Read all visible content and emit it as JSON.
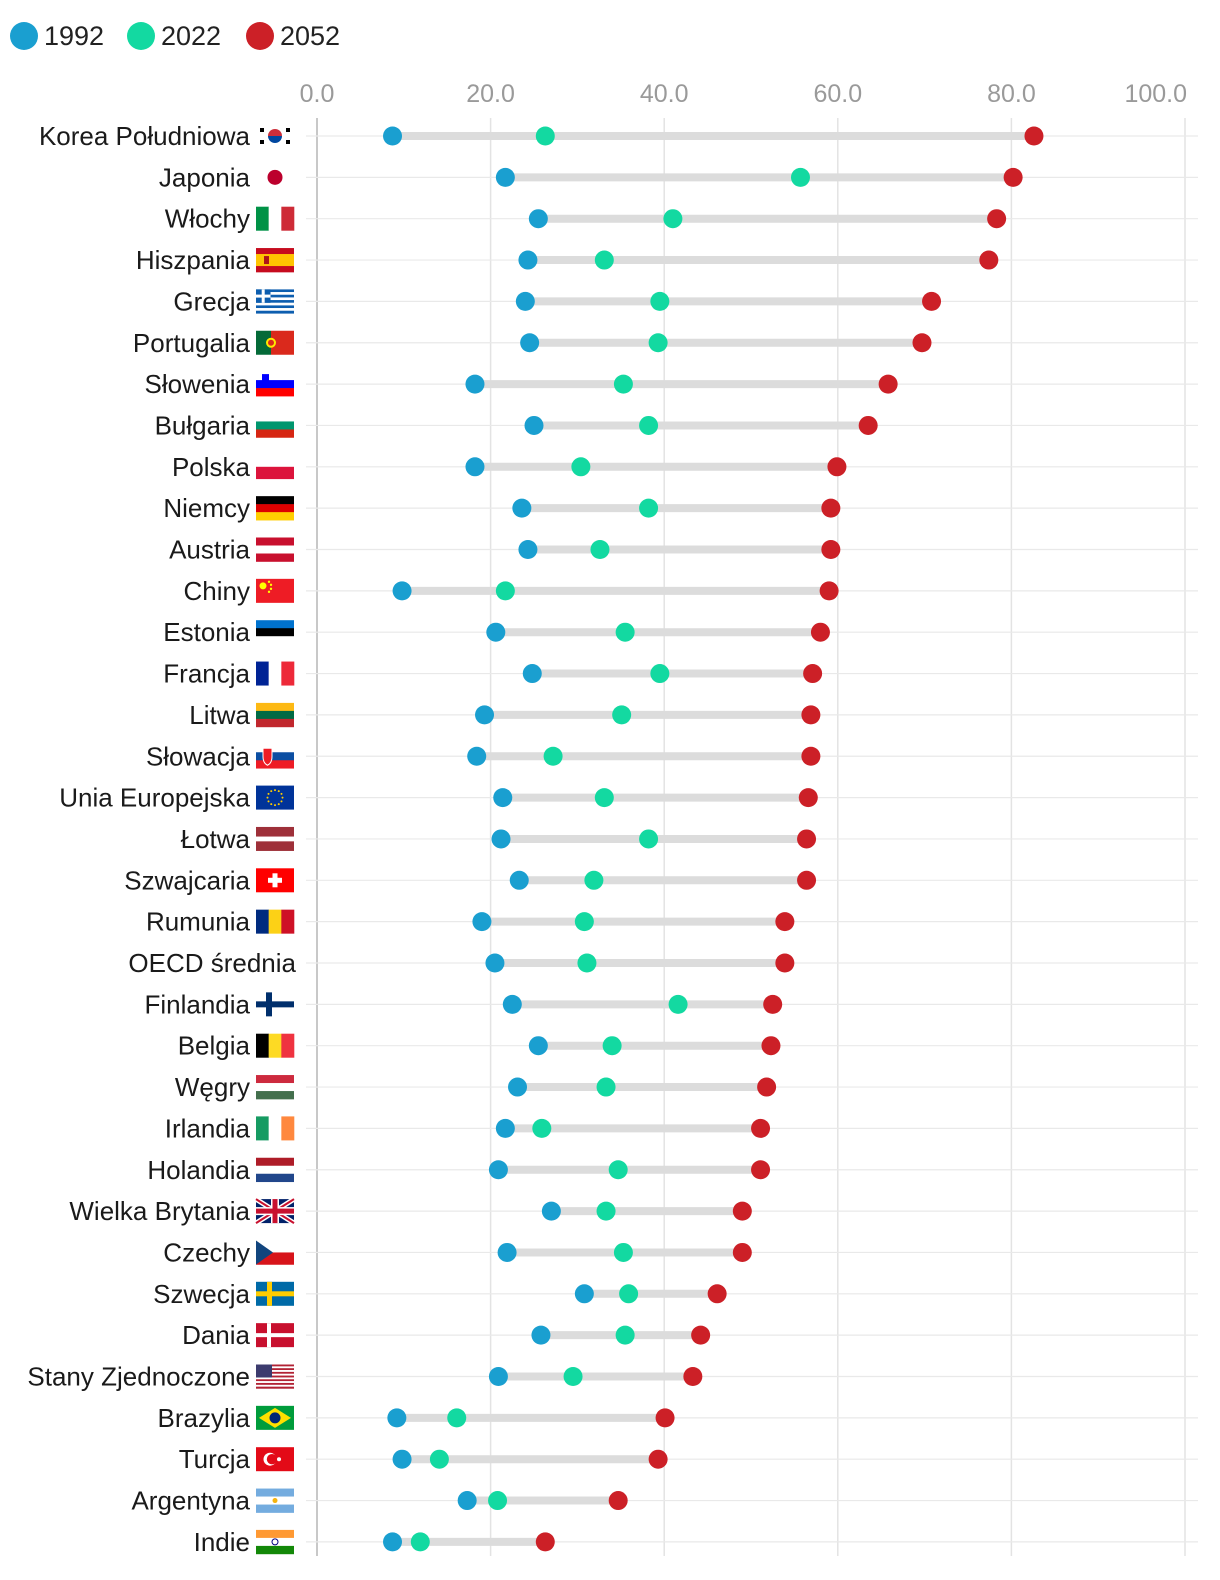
{
  "chart_data": {
    "type": "dot-range",
    "xlim": [
      0,
      100
    ],
    "ticks": [
      "0.0",
      "20.0",
      "40.0",
      "60.0",
      "80.0",
      "100.0"
    ],
    "legend_position": "top-left",
    "grid": true,
    "series": [
      {
        "name": "1992",
        "color": "#1a9fd0"
      },
      {
        "name": "2022",
        "color": "#13d9a1"
      },
      {
        "name": "2052",
        "color": "#cc2027"
      }
    ],
    "rows": [
      {
        "country": "Korea Południowa",
        "flag": "south-korea-flag",
        "values": [
          8.7,
          26.3,
          82.6
        ]
      },
      {
        "country": "Japonia",
        "flag": "japan-flag",
        "values": [
          21.7,
          55.7,
          80.2
        ]
      },
      {
        "country": "Włochy",
        "flag": "italy-flag",
        "values": [
          25.5,
          41.0,
          78.3
        ]
      },
      {
        "country": "Hiszpania",
        "flag": "spain-flag",
        "values": [
          24.3,
          33.1,
          77.4
        ]
      },
      {
        "country": "Grecja",
        "flag": "greece-flag",
        "values": [
          24.0,
          39.5,
          70.8
        ]
      },
      {
        "country": "Portugalia",
        "flag": "portugal-flag",
        "values": [
          24.5,
          39.3,
          69.7
        ]
      },
      {
        "country": "Słowenia",
        "flag": "slovenia-flag",
        "values": [
          18.2,
          35.3,
          65.8
        ]
      },
      {
        "country": "Bułgaria",
        "flag": "bulgaria-flag",
        "values": [
          25.0,
          38.2,
          63.5
        ]
      },
      {
        "country": "Polska",
        "flag": "poland-flag",
        "values": [
          18.2,
          30.4,
          59.9
        ]
      },
      {
        "country": "Niemcy",
        "flag": "germany-flag",
        "values": [
          23.6,
          38.2,
          59.2
        ]
      },
      {
        "country": "Austria",
        "flag": "austria-flag",
        "values": [
          24.3,
          32.6,
          59.2
        ]
      },
      {
        "country": "Chiny",
        "flag": "china-flag",
        "values": [
          9.8,
          21.7,
          59.0
        ]
      },
      {
        "country": "Estonia",
        "flag": "estonia-flag",
        "values": [
          20.6,
          35.5,
          58.0
        ]
      },
      {
        "country": "Francja",
        "flag": "france-flag",
        "values": [
          24.8,
          39.5,
          57.1
        ]
      },
      {
        "country": "Litwa",
        "flag": "lithuania-flag",
        "values": [
          19.3,
          35.1,
          56.9
        ]
      },
      {
        "country": "Słowacja",
        "flag": "slovakia-flag",
        "values": [
          18.4,
          27.2,
          56.9
        ]
      },
      {
        "country": "Unia Europejska",
        "flag": "eu-flag",
        "values": [
          21.4,
          33.1,
          56.6
        ]
      },
      {
        "country": "Łotwa",
        "flag": "latvia-flag",
        "values": [
          21.2,
          38.2,
          56.4
        ]
      },
      {
        "country": "Szwajcaria",
        "flag": "switzerland-flag",
        "values": [
          23.3,
          31.9,
          56.4
        ]
      },
      {
        "country": "Rumunia",
        "flag": "romania-flag",
        "values": [
          19.0,
          30.8,
          53.9
        ]
      },
      {
        "country": "OECD średnia",
        "flag": "",
        "values": [
          20.5,
          31.1,
          53.9
        ]
      },
      {
        "country": "Finlandia",
        "flag": "finland-flag",
        "values": [
          22.5,
          41.6,
          52.5
        ]
      },
      {
        "country": "Belgia",
        "flag": "belgium-flag",
        "values": [
          25.5,
          34.0,
          52.3
        ]
      },
      {
        "country": "Węgry",
        "flag": "hungary-flag",
        "values": [
          23.1,
          33.3,
          51.8
        ]
      },
      {
        "country": "Irlandia",
        "flag": "ireland-flag",
        "values": [
          21.7,
          25.9,
          51.1
        ]
      },
      {
        "country": "Holandia",
        "flag": "netherlands-flag",
        "values": [
          20.9,
          34.7,
          51.1
        ]
      },
      {
        "country": "Wielka Brytania",
        "flag": "uk-flag",
        "values": [
          27.0,
          33.3,
          49.0
        ]
      },
      {
        "country": "Czechy",
        "flag": "czech-flag",
        "values": [
          21.9,
          35.3,
          49.0
        ]
      },
      {
        "country": "Szwecja",
        "flag": "sweden-flag",
        "values": [
          30.8,
          35.9,
          46.1
        ]
      },
      {
        "country": "Dania",
        "flag": "denmark-flag",
        "values": [
          25.8,
          35.5,
          44.2
        ]
      },
      {
        "country": "Stany Zjednoczone",
        "flag": "usa-flag",
        "values": [
          20.9,
          29.5,
          43.3
        ]
      },
      {
        "country": "Brazylia",
        "flag": "brazil-flag",
        "values": [
          9.2,
          16.1,
          40.1
        ]
      },
      {
        "country": "Turcja",
        "flag": "turkey-flag",
        "values": [
          9.8,
          14.1,
          39.3
        ]
      },
      {
        "country": "Argentyna",
        "flag": "argentina-flag",
        "values": [
          17.3,
          20.8,
          34.7
        ]
      },
      {
        "country": "Indie",
        "flag": "india-flag",
        "values": [
          8.7,
          11.9,
          26.3
        ]
      }
    ]
  }
}
